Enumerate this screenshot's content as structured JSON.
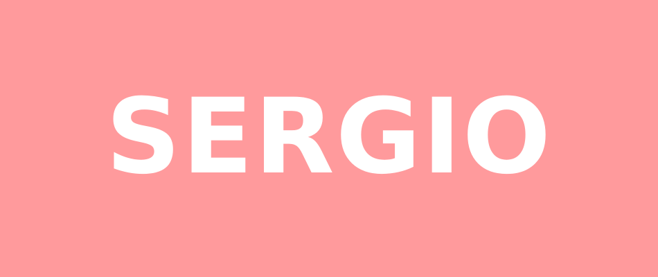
{
  "banner": {
    "title": "SERGIO",
    "background_color": "#FF9A9C",
    "text_color": "#FFFFFF"
  }
}
